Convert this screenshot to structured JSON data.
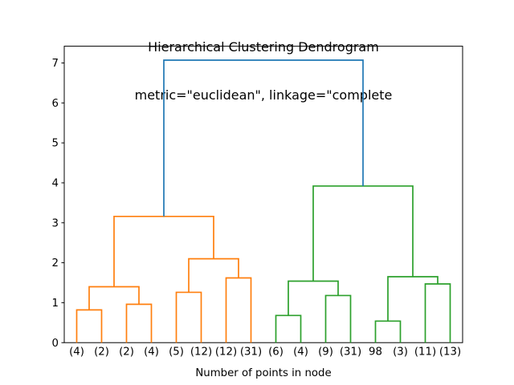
{
  "chart_data": {
    "type": "dendrogram",
    "title_line1": "Hierarchical Clustering Dendrogram",
    "title_line2": "metric=\"euclidean\", linkage=\"complete",
    "xlabel": "Number of points in node",
    "grid": false,
    "xlim": [
      0,
      160
    ],
    "ylim": [
      0,
      7.42
    ],
    "yticks": [
      0,
      1,
      2,
      3,
      4,
      5,
      6,
      7
    ],
    "leaf_labels": [
      "(4)",
      "(2)",
      "(2)",
      "(4)",
      "(5)",
      "(12)",
      "(12)",
      "(31)",
      "(6)",
      "(4)",
      "(9)",
      "(31)",
      "98",
      "(3)",
      "(11)",
      "(13)"
    ],
    "leaf_x": [
      5,
      15,
      25,
      35,
      45,
      55,
      65,
      75,
      85,
      95,
      105,
      115,
      125,
      135,
      145,
      155
    ],
    "colors": {
      "above_threshold": "#1f77b4",
      "cluster_orange": "#ff7f0e",
      "cluster_green": "#2ca02c",
      "axis": "#000000"
    },
    "links": [
      {
        "x1": 5,
        "h1": 0,
        "x2": 15,
        "h2": 0,
        "h": 0.82,
        "c": "cluster_orange"
      },
      {
        "x1": 25,
        "h1": 0,
        "x2": 35,
        "h2": 0,
        "h": 0.96,
        "c": "cluster_orange"
      },
      {
        "x1": 10,
        "h1": 0.82,
        "x2": 30,
        "h2": 0.96,
        "h": 1.4,
        "c": "cluster_orange"
      },
      {
        "x1": 45,
        "h1": 0,
        "x2": 55,
        "h2": 0,
        "h": 1.26,
        "c": "cluster_orange"
      },
      {
        "x1": 65,
        "h1": 0,
        "x2": 75,
        "h2": 0,
        "h": 1.62,
        "c": "cluster_orange"
      },
      {
        "x1": 50,
        "h1": 1.26,
        "x2": 70,
        "h2": 1.62,
        "h": 2.1,
        "c": "cluster_orange"
      },
      {
        "x1": 20,
        "h1": 1.4,
        "x2": 60,
        "h2": 2.1,
        "h": 3.16,
        "c": "cluster_orange"
      },
      {
        "x1": 85,
        "h1": 0,
        "x2": 95,
        "h2": 0,
        "h": 0.68,
        "c": "cluster_green"
      },
      {
        "x1": 105,
        "h1": 0,
        "x2": 115,
        "h2": 0,
        "h": 1.18,
        "c": "cluster_green"
      },
      {
        "x1": 90,
        "h1": 0.68,
        "x2": 110,
        "h2": 1.18,
        "h": 1.54,
        "c": "cluster_green"
      },
      {
        "x1": 125,
        "h1": 0,
        "x2": 135,
        "h2": 0,
        "h": 0.54,
        "c": "cluster_green"
      },
      {
        "x1": 145,
        "h1": 0,
        "x2": 155,
        "h2": 0,
        "h": 1.47,
        "c": "cluster_green"
      },
      {
        "x1": 130,
        "h1": 0.54,
        "x2": 150,
        "h2": 1.47,
        "h": 1.65,
        "c": "cluster_green"
      },
      {
        "x1": 100,
        "h1": 1.54,
        "x2": 140,
        "h2": 1.65,
        "h": 3.92,
        "c": "cluster_green"
      },
      {
        "x1": 40,
        "h1": 3.16,
        "x2": 120,
        "h2": 3.92,
        "h": 7.07,
        "c": "above_threshold"
      }
    ]
  }
}
